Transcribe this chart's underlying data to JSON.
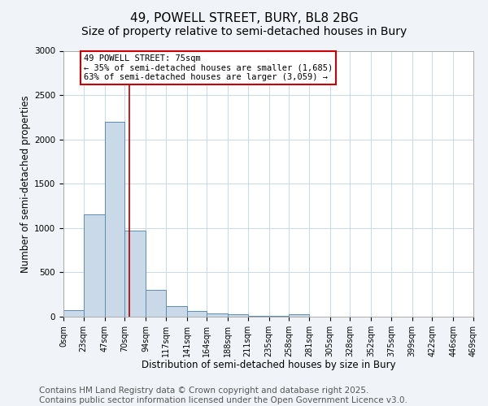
{
  "title": "49, POWELL STREET, BURY, BL8 2BG",
  "subtitle": "Size of property relative to semi-detached houses in Bury",
  "xlabel": "Distribution of semi-detached houses by size in Bury",
  "ylabel": "Number of semi-detached properties",
  "bin_edges": [
    0,
    23,
    47,
    70,
    94,
    117,
    141,
    164,
    188,
    211,
    235,
    258,
    281,
    305,
    328,
    352,
    375,
    399,
    422,
    446,
    469
  ],
  "bin_labels": [
    "0sqm",
    "23sqm",
    "47sqm",
    "70sqm",
    "94sqm",
    "117sqm",
    "141sqm",
    "164sqm",
    "188sqm",
    "211sqm",
    "235sqm",
    "258sqm",
    "281sqm",
    "305sqm",
    "328sqm",
    "352sqm",
    "375sqm",
    "399sqm",
    "422sqm",
    "446sqm",
    "469sqm"
  ],
  "bar_heights": [
    75,
    1150,
    2200,
    975,
    305,
    115,
    60,
    40,
    25,
    10,
    5,
    25,
    0,
    0,
    0,
    0,
    0,
    0,
    0,
    0
  ],
  "bar_color": "#c9d9e8",
  "bar_edge_color": "#5b8db8",
  "property_size": 75,
  "property_line_color": "#aa0000",
  "annotation_text": "49 POWELL STREET: 75sqm\n← 35% of semi-detached houses are smaller (1,685)\n63% of semi-detached houses are larger (3,059) →",
  "annotation_box_color": "#ffffff",
  "annotation_box_edge_color": "#cc0000",
  "ylim": [
    0,
    3000
  ],
  "yticks": [
    0,
    500,
    1000,
    1500,
    2000,
    2500,
    3000
  ],
  "footer_line1": "Contains HM Land Registry data © Crown copyright and database right 2025.",
  "footer_line2": "Contains public sector information licensed under the Open Government Licence v3.0.",
  "background_color": "#f0f4f8",
  "plot_bg_color": "#ffffff",
  "grid_color": "#c8d8e8",
  "title_fontsize": 11,
  "axis_label_fontsize": 8.5,
  "tick_fontsize": 7,
  "footer_fontsize": 7.5,
  "annotation_fontsize": 7.5
}
